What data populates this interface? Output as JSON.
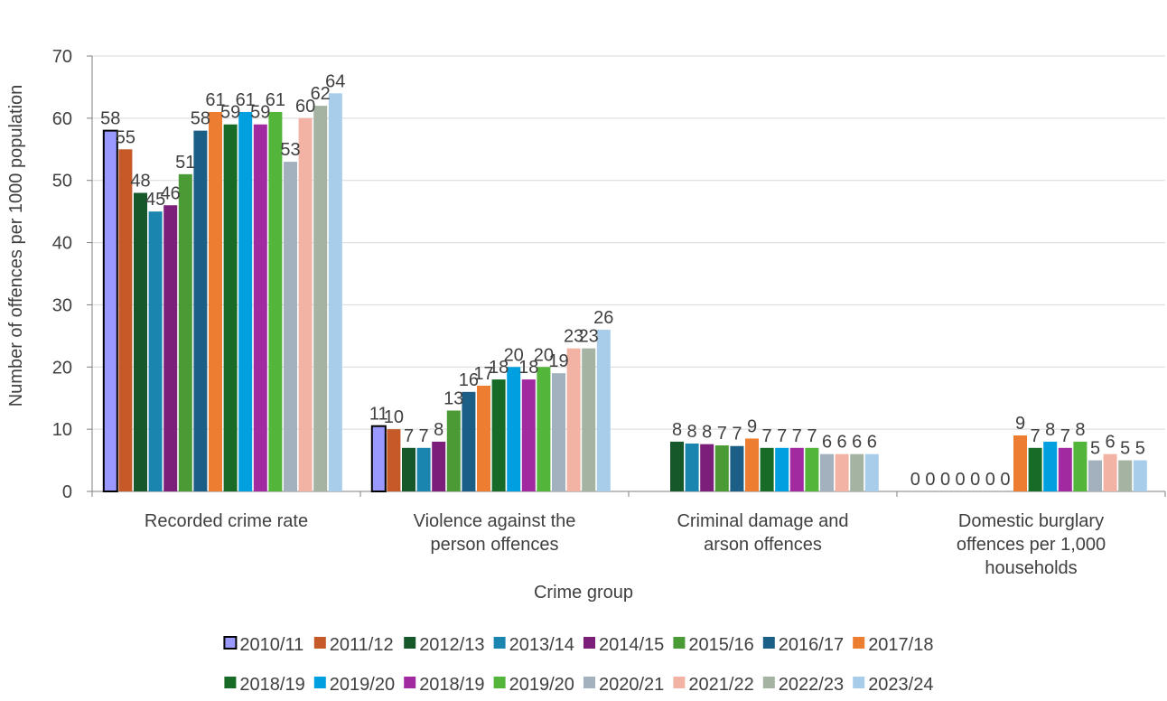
{
  "chart_data": {
    "type": "bar",
    "title": "",
    "xlabel": "Crime group",
    "ylabel": "Number of offences per 1000 population",
    "ylim": [
      0,
      70
    ],
    "yticks": [
      "0",
      "10",
      "20",
      "30",
      "40",
      "50",
      "60",
      "70"
    ],
    "grid": true,
    "legend_position": "bottom",
    "categories": [
      [
        "Recorded crime rate"
      ],
      [
        "Violence against the",
        "person offences"
      ],
      [
        "Criminal damage and",
        "arson offences"
      ],
      [
        "Domestic burglary",
        "offences per 1,000",
        "households"
      ]
    ],
    "series": [
      {
        "name": "2010/11",
        "color": "#9999ff",
        "outlined": true,
        "values": [
          58,
          10.5,
          null,
          0
        ],
        "labels": [
          "58",
          "11",
          "",
          "0"
        ]
      },
      {
        "name": "2011/12",
        "color": "#c55a28",
        "values": [
          55,
          10,
          null,
          0
        ],
        "labels": [
          "55",
          "10",
          "",
          "0"
        ]
      },
      {
        "name": "2012/13",
        "color": "#17582b",
        "values": [
          48,
          7,
          8,
          0
        ],
        "labels": [
          "48",
          "7",
          "8",
          "0"
        ]
      },
      {
        "name": "2013/14",
        "color": "#1a86b0",
        "values": [
          45,
          7,
          7.7,
          0
        ],
        "labels": [
          "45",
          "7",
          "8",
          "0"
        ]
      },
      {
        "name": "2014/15",
        "color": "#7b1f7b",
        "values": [
          46,
          8,
          7.6,
          0
        ],
        "labels": [
          "46",
          "8",
          "8",
          "0"
        ]
      },
      {
        "name": "2015/16",
        "color": "#4a9a36",
        "values": [
          51,
          13,
          7.4,
          0
        ],
        "labels": [
          "51",
          "13",
          "7",
          "0"
        ]
      },
      {
        "name": "2016/17",
        "color": "#1b5f86",
        "values": [
          58,
          16,
          7.3,
          0
        ],
        "labels": [
          "58",
          "16",
          "7",
          "0"
        ]
      },
      {
        "name": "2017/18",
        "color": "#ed7d31",
        "values": [
          61,
          17,
          8.5,
          9
        ],
        "labels": [
          "61",
          "17",
          "9",
          "9"
        ]
      },
      {
        "name": "2018/19",
        "color": "#176b26",
        "values": [
          59,
          18,
          7,
          7
        ],
        "labels": [
          "59",
          "18",
          "7",
          "7"
        ]
      },
      {
        "name": "2019/20",
        "color": "#00a0e0",
        "values": [
          61,
          20,
          7,
          8
        ],
        "labels": [
          "61",
          "20",
          "7",
          "8"
        ]
      },
      {
        "name": "2018/19",
        "color": "#a12aa1",
        "values": [
          59,
          18,
          7,
          7
        ],
        "labels": [
          "59",
          "18",
          "7",
          "7"
        ]
      },
      {
        "name": "2019/20",
        "color": "#53b53a",
        "values": [
          61,
          20,
          7,
          8
        ],
        "labels": [
          "61",
          "20",
          "7",
          "8"
        ]
      },
      {
        "name": "2020/21",
        "color": "#a3b1bf",
        "values": [
          53,
          19,
          6,
          5
        ],
        "labels": [
          "53",
          "19",
          "6",
          "5"
        ]
      },
      {
        "name": "2021/22",
        "color": "#f2b3a5",
        "values": [
          60,
          23,
          6,
          6
        ],
        "labels": [
          "60",
          "23",
          "6",
          "6"
        ]
      },
      {
        "name": "2022/23",
        "color": "#a5b4a2",
        "values": [
          62,
          23,
          6,
          5
        ],
        "labels": [
          "62",
          "23",
          "6",
          "5"
        ]
      },
      {
        "name": "2023/24",
        "color": "#a7cdeb",
        "values": [
          64,
          26,
          6,
          5
        ],
        "labels": [
          "64",
          "26",
          "6",
          "5"
        ]
      }
    ]
  }
}
